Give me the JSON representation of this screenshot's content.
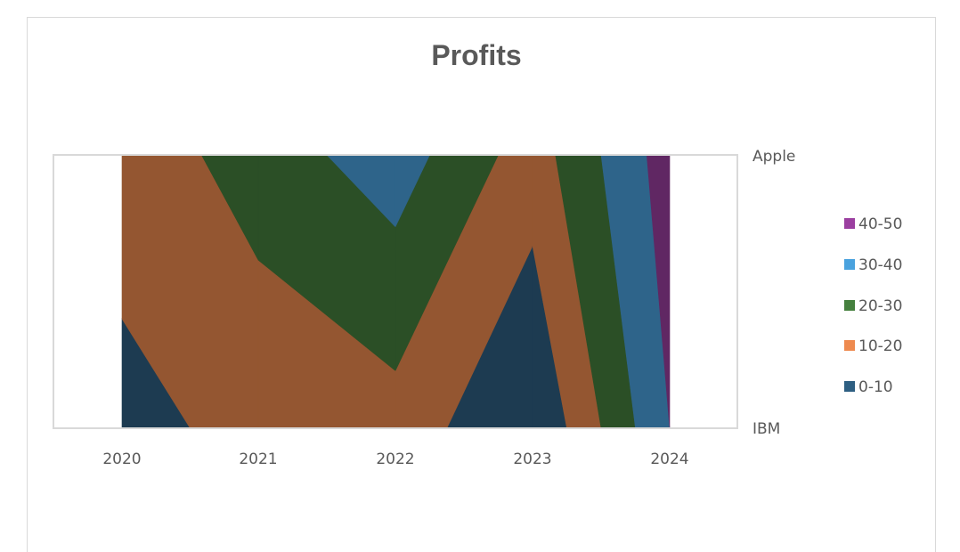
{
  "chart_data": {
    "type": "surface-contour",
    "title": "Profits",
    "x_categories": [
      "2020",
      "2021",
      "2022",
      "2023",
      "2024"
    ],
    "y_categories": [
      "IBM",
      "Apple"
    ],
    "z": {
      "IBM": [
        8,
        12,
        16,
        0,
        40
      ],
      "Apple": [
        13,
        25,
        35,
        15,
        45
      ]
    },
    "value_bands": [
      {
        "name": "0-10",
        "range": [
          0,
          10
        ],
        "color": "#2e5f82"
      },
      {
        "name": "10-20",
        "range": [
          10,
          20
        ],
        "color": "#ee8a4f"
      },
      {
        "name": "20-30",
        "range": [
          20,
          30
        ],
        "color": "#45803e"
      },
      {
        "name": "30-40",
        "range": [
          30,
          40
        ],
        "color": "#4aa2de"
      },
      {
        "name": "40-50",
        "range": [
          40,
          50
        ],
        "color": "#9b3fa0"
      }
    ],
    "legend_position": "right",
    "gridlines": false
  },
  "colors": {
    "title": "#595959",
    "axis_text": "#595959",
    "plot_border": "#d9d9d9"
  }
}
